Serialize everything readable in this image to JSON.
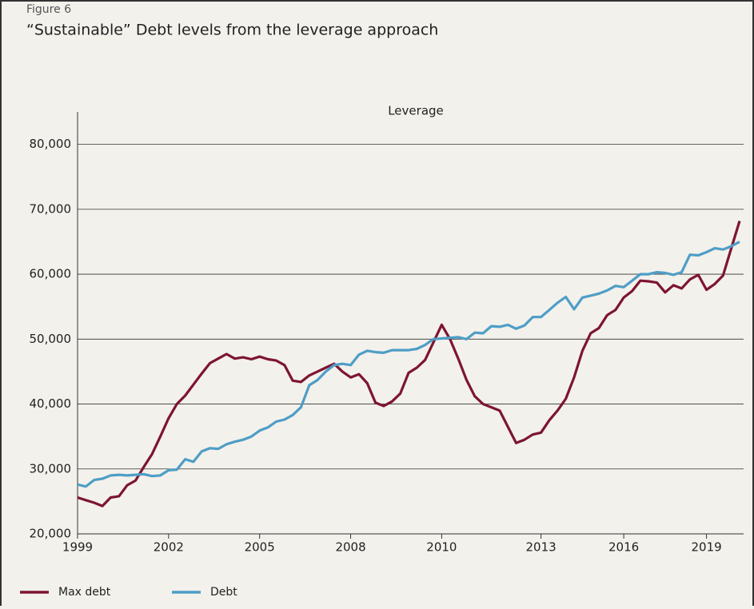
{
  "chart_data": {
    "type": "line",
    "figure_label": "Figure 6",
    "title": "“Sustainable” Debt levels from the leverage approach",
    "subtitle": "Leverage",
    "categories": [
      "1999",
      null,
      null,
      null,
      null,
      null,
      null,
      null,
      null,
      null,
      null,
      "2002",
      null,
      null,
      null,
      null,
      null,
      null,
      null,
      null,
      null,
      null,
      "2005",
      null,
      null,
      null,
      null,
      null,
      null,
      null,
      null,
      null,
      null,
      "2008",
      null,
      null,
      null,
      null,
      null,
      null,
      null,
      null,
      null,
      null,
      "2010",
      null,
      null,
      null,
      null,
      null,
      null,
      null,
      null,
      null,
      null,
      null,
      "2013",
      null,
      null,
      null,
      null,
      null,
      null,
      null,
      null,
      null,
      "2016",
      null,
      null,
      null,
      null,
      null,
      null,
      null,
      null,
      null,
      "2019",
      null,
      null,
      null,
      null
    ],
    "series": [
      {
        "name": "Max debt",
        "color": "#7d1530",
        "values": [
          25600,
          25200,
          24800,
          24300,
          25600,
          25800,
          27500,
          28200,
          30300,
          32300,
          35000,
          37800,
          40000,
          41300,
          43000,
          44700,
          46300,
          47000,
          47700,
          47000,
          47200,
          46900,
          47300,
          46900,
          46700,
          46000,
          43600,
          43400,
          44400,
          45000,
          45600,
          46200,
          45000,
          44100,
          44600,
          43200,
          40200,
          39700,
          40400,
          41600,
          44800,
          45600,
          46800,
          49500,
          52200,
          50000,
          47000,
          43700,
          41200,
          40000,
          39500,
          39000,
          36500,
          34000,
          34500,
          35300,
          35600,
          37500,
          39000,
          40800,
          44100,
          48200,
          50900,
          51700,
          53700,
          54500,
          56400,
          57400,
          59000,
          58900,
          58700,
          57200,
          58300,
          57800,
          59200,
          59900,
          57600,
          58500,
          59800,
          64000,
          68200
        ]
      },
      {
        "name": "Debt",
        "color": "#4e9ec6",
        "values": [
          27600,
          27300,
          28300,
          28500,
          29000,
          29100,
          29000,
          29100,
          29200,
          28900,
          29000,
          29800,
          29900,
          31500,
          31100,
          32700,
          33200,
          33100,
          33800,
          34200,
          34500,
          35000,
          35900,
          36400,
          37300,
          37600,
          38300,
          39500,
          42900,
          43700,
          45000,
          46000,
          46200,
          46000,
          47600,
          48200,
          48000,
          47900,
          48300,
          48300,
          48300,
          48500,
          49100,
          50000,
          50100,
          50200,
          50300,
          50000,
          51000,
          50900,
          52000,
          51900,
          52200,
          51600,
          52100,
          53400,
          53400,
          54500,
          55600,
          56500,
          54600,
          56400,
          56700,
          57000,
          57500,
          58200,
          58000,
          59000,
          60000,
          60000,
          60300,
          60200,
          59900,
          60300,
          63000,
          62900,
          63400,
          64000,
          63800,
          64300,
          65000
        ]
      }
    ],
    "ylim": [
      20000,
      85000
    ],
    "yticks": [
      {
        "value": 20000,
        "label": "20,000"
      },
      {
        "value": 30000,
        "label": "30,000"
      },
      {
        "value": 40000,
        "label": "40,000"
      },
      {
        "value": 50000,
        "label": "50,000"
      },
      {
        "value": 60000,
        "label": "60,000"
      },
      {
        "value": 70000,
        "label": "70,000"
      },
      {
        "value": 80000,
        "label": "80,000"
      }
    ],
    "grid": true,
    "legend": "bottom"
  }
}
